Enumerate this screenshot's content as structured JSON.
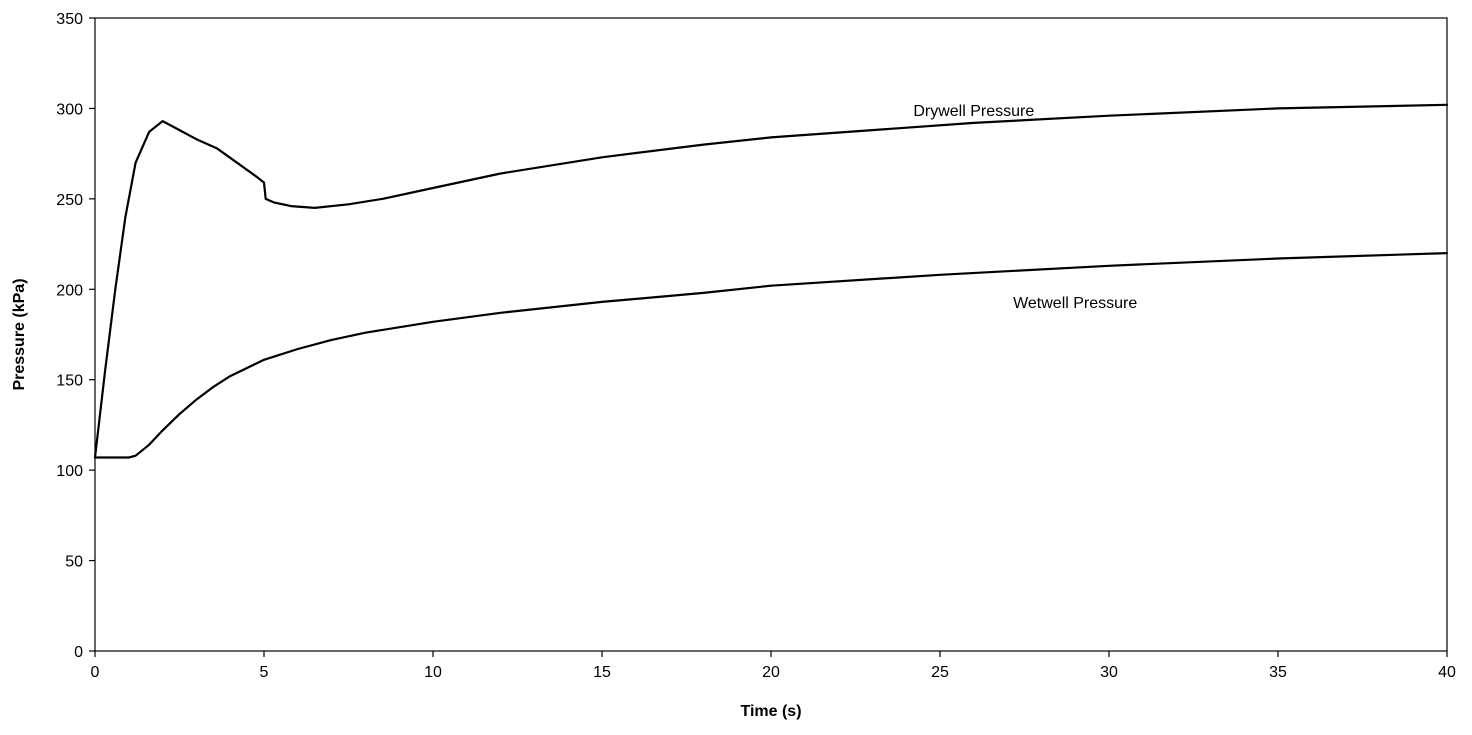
{
  "chart_data": {
    "type": "line",
    "title": "",
    "xlabel": "Time (s)",
    "ylabel": "Pressure (kPa)",
    "xlim": [
      0,
      40
    ],
    "ylim": [
      0,
      350
    ],
    "xticks": [
      0,
      5,
      10,
      15,
      20,
      25,
      30,
      35,
      40
    ],
    "yticks": [
      0,
      50,
      100,
      150,
      200,
      250,
      300,
      350
    ],
    "grid": false,
    "legend": "none",
    "line_color": "#000000",
    "series": [
      {
        "name": "Drywell Pressure",
        "x": [
          0,
          0.3,
          0.6,
          0.9,
          1.2,
          1.6,
          2.0,
          2.5,
          3.0,
          3.6,
          4.2,
          4.8,
          5.0,
          5.05,
          5.3,
          5.8,
          6.5,
          7.5,
          8.5,
          10,
          12,
          15,
          18,
          20,
          23,
          26,
          30,
          35,
          40
        ],
        "y": [
          107,
          155,
          200,
          240,
          270,
          287,
          293,
          288,
          283,
          278,
          270,
          262,
          259,
          250,
          248,
          246,
          245,
          247,
          250,
          256,
          264,
          273,
          280,
          284,
          288,
          292,
          296,
          300,
          302
        ]
      },
      {
        "name": "Wetwell Pressure",
        "x": [
          0,
          0.5,
          1.0,
          1.2,
          1.6,
          2.0,
          2.5,
          3.0,
          3.5,
          4.0,
          5.0,
          6.0,
          7.0,
          8.0,
          10,
          12,
          15,
          18,
          20,
          25,
          30,
          35,
          40
        ],
        "y": [
          107,
          107,
          107,
          108,
          114,
          122,
          131,
          139,
          146,
          152,
          161,
          167,
          172,
          176,
          182,
          187,
          193,
          198,
          202,
          208,
          213,
          217,
          220
        ]
      }
    ],
    "annotations": [
      {
        "text": "Drywell Pressure",
        "x": 26,
        "y": 299,
        "series": 0
      },
      {
        "text": "Wetwell Pressure",
        "x": 29,
        "y": 193,
        "series": 1
      }
    ]
  }
}
